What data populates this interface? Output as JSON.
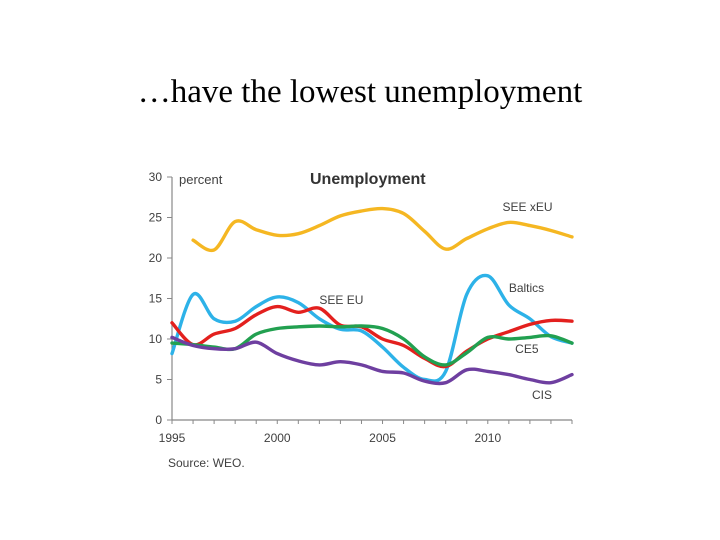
{
  "slide": {
    "title": "…have the lowest unemployment"
  },
  "chart_data": {
    "type": "line",
    "title": "Unemployment",
    "ylabel": "percent",
    "source": "Source: WEO.",
    "ylim": [
      0,
      30
    ],
    "xlim": [
      1995,
      2014
    ],
    "yticks": [
      0,
      5,
      10,
      15,
      20,
      25,
      30
    ],
    "xticks": [
      1995,
      2000,
      2005,
      2010
    ],
    "grid": false,
    "legend": "inline labels",
    "series": [
      {
        "name": "SEE xEU",
        "color": "#F5B722",
        "x": [
          1996,
          1997,
          1998,
          1999,
          2000,
          2001,
          2002,
          2003,
          2004,
          2005,
          2006,
          2007,
          2008,
          2009,
          2010,
          2011,
          2012,
          2013,
          2014
        ],
        "values": [
          22.2,
          21.0,
          24.5,
          23.5,
          22.8,
          23.0,
          24.0,
          25.2,
          25.8,
          26.1,
          25.5,
          23.3,
          21.1,
          22.4,
          23.6,
          24.4,
          24.0,
          23.4,
          22.6
        ]
      },
      {
        "name": "Baltics",
        "color": "#2DB2E8",
        "x": [
          1995,
          1996,
          1997,
          1998,
          1999,
          2000,
          2001,
          2002,
          2003,
          2004,
          2005,
          2006,
          2007,
          2008,
          2009,
          2010,
          2011,
          2012,
          2013,
          2014
        ],
        "values": [
          8.2,
          15.5,
          12.5,
          12.2,
          14.0,
          15.2,
          14.5,
          12.5,
          11.2,
          11.0,
          9.0,
          6.5,
          5.0,
          6.0,
          15.5,
          17.8,
          14.2,
          12.5,
          10.3,
          9.5
        ]
      },
      {
        "name": "SEE EU",
        "color": "#E3201E",
        "x": [
          1995,
          1996,
          1997,
          1998,
          1999,
          2000,
          2001,
          2002,
          2003,
          2004,
          2005,
          2006,
          2007,
          2008,
          2009,
          2010,
          2011,
          2012,
          2013,
          2014
        ],
        "values": [
          12.0,
          9.3,
          10.6,
          11.3,
          13.0,
          14.0,
          13.3,
          13.8,
          11.7,
          11.5,
          10.0,
          9.2,
          7.6,
          6.6,
          8.5,
          10.0,
          10.9,
          11.8,
          12.3,
          12.2
        ]
      },
      {
        "name": "CE5",
        "color": "#22A050",
        "x": [
          1995,
          1996,
          1997,
          1998,
          1999,
          2000,
          2001,
          2002,
          2003,
          2004,
          2005,
          2006,
          2007,
          2008,
          2009,
          2010,
          2011,
          2012,
          2013,
          2014
        ],
        "values": [
          9.5,
          9.3,
          9.0,
          8.8,
          10.6,
          11.3,
          11.5,
          11.6,
          11.5,
          11.6,
          11.3,
          10.0,
          7.8,
          6.8,
          8.3,
          10.2,
          10.0,
          10.2,
          10.4,
          9.5
        ]
      },
      {
        "name": "CIS",
        "color": "#6E3FA0",
        "x": [
          1995,
          1996,
          1997,
          1998,
          1999,
          2000,
          2001,
          2002,
          2003,
          2004,
          2005,
          2006,
          2007,
          2008,
          2009,
          2010,
          2011,
          2012,
          2013,
          2014
        ],
        "values": [
          10.2,
          9.2,
          8.8,
          8.8,
          9.6,
          8.2,
          7.3,
          6.8,
          7.2,
          6.8,
          6.0,
          5.8,
          4.8,
          4.6,
          6.2,
          6.0,
          5.6,
          5.0,
          4.6,
          5.6
        ]
      }
    ]
  }
}
